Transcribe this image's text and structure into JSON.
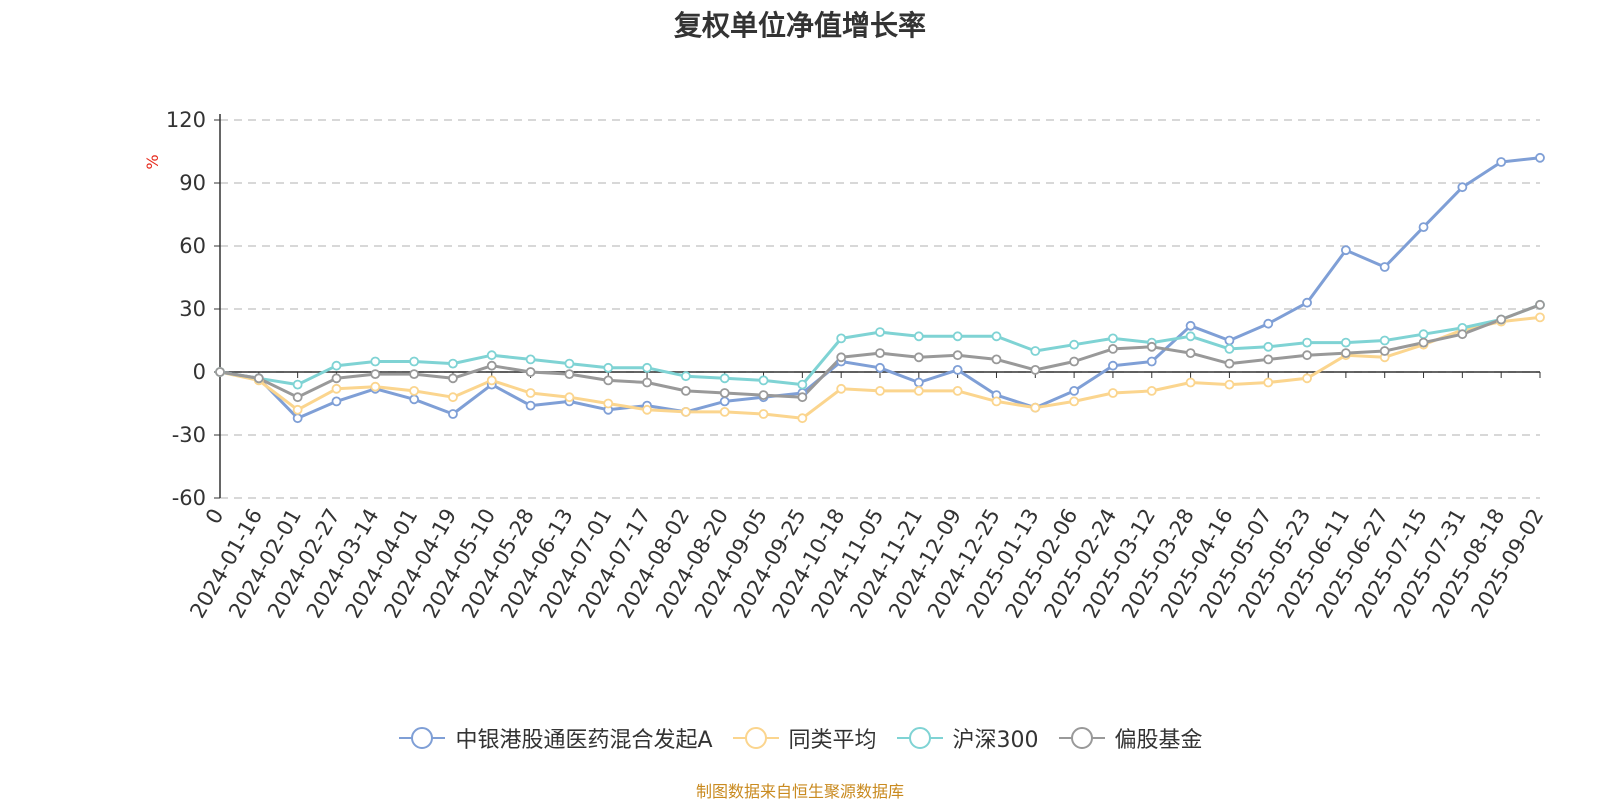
{
  "chart_data": {
    "type": "line",
    "title": "复权单位净值增长率",
    "ylabel": "%",
    "ylim": [
      -60,
      120
    ],
    "yticks": [
      120,
      90,
      60,
      30,
      0,
      -30,
      -60
    ],
    "grid": true,
    "legend_position": "bottom-center",
    "source": "制图数据来自恒生聚源数据库",
    "categories": [
      "0",
      "2024-01-16",
      "2024-02-01",
      "2024-02-27",
      "2024-03-14",
      "2024-04-01",
      "2024-04-19",
      "2024-05-10",
      "2024-05-28",
      "2024-06-13",
      "2024-07-01",
      "2024-07-17",
      "2024-08-02",
      "2024-08-20",
      "2024-09-05",
      "2024-09-25",
      "2024-10-18",
      "2024-11-05",
      "2024-11-21",
      "2024-12-09",
      "2024-12-25",
      "2025-01-13",
      "2025-02-06",
      "2025-02-24",
      "2025-03-12",
      "2025-03-28",
      "2025-04-16",
      "2025-05-07",
      "2025-05-23",
      "2025-06-11",
      "2025-06-27",
      "2025-07-15",
      "2025-07-31",
      "2025-08-18",
      "2025-09-02"
    ],
    "series": [
      {
        "name": "中银港股通医药混合发起A",
        "color": "#7f9fd6",
        "values": [
          0,
          -3,
          -22,
          -14,
          -8,
          -13,
          -20,
          -6,
          -16,
          -14,
          -18,
          -16,
          -19,
          -14,
          -12,
          -10,
          5,
          2,
          -5,
          1,
          -11,
          -17,
          -9,
          3,
          5,
          22,
          15,
          23,
          33,
          58,
          50,
          69,
          88,
          100,
          102
        ]
      },
      {
        "name": "同类平均",
        "color": "#fbd58e",
        "values": [
          0,
          -4,
          -18,
          -8,
          -7,
          -9,
          -12,
          -4,
          -10,
          -12,
          -15,
          -18,
          -19,
          -19,
          -20,
          -22,
          -8,
          -9,
          -9,
          -9,
          -14,
          -17,
          -14,
          -10,
          -9,
          -5,
          -6,
          -5,
          -3,
          8,
          7,
          13,
          20,
          24,
          26
        ]
      },
      {
        "name": "沪深300",
        "color": "#7fd3d4",
        "values": [
          0,
          -3,
          -6,
          3,
          5,
          5,
          4,
          8,
          6,
          4,
          2,
          2,
          -2,
          -3,
          -4,
          -6,
          16,
          19,
          17,
          17,
          17,
          10,
          13,
          16,
          14,
          17,
          11,
          12,
          14,
          14,
          15,
          18,
          21,
          25,
          32
        ]
      },
      {
        "name": "偏股基金",
        "color": "#999999",
        "values": [
          0,
          -3,
          -12,
          -3,
          -1,
          -1,
          -3,
          3,
          0,
          -1,
          -4,
          -5,
          -9,
          -10,
          -11,
          -12,
          7,
          9,
          7,
          8,
          6,
          1,
          5,
          11,
          12,
          9,
          4,
          6,
          8,
          9,
          10,
          14,
          18,
          25,
          32
        ]
      }
    ]
  }
}
